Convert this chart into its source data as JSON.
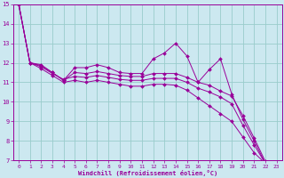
{
  "title": "",
  "xlabel": "Windchill (Refroidissement éolien,°C)",
  "ylabel": "",
  "background_color": "#cce8f0",
  "line_color": "#990099",
  "grid_color": "#99cccc",
  "xlim": [
    -0.5,
    23.5
  ],
  "ylim": [
    7,
    15
  ],
  "yticks": [
    7,
    8,
    9,
    10,
    11,
    12,
    13,
    14,
    15
  ],
  "xticks": [
    0,
    1,
    2,
    3,
    4,
    5,
    6,
    7,
    8,
    9,
    10,
    11,
    12,
    13,
    14,
    15,
    16,
    17,
    18,
    19,
    20,
    21,
    22,
    23
  ],
  "series": [
    [
      15.0,
      12.0,
      11.9,
      11.5,
      11.1,
      11.75,
      11.75,
      11.9,
      11.75,
      11.5,
      11.45,
      11.45,
      12.2,
      12.5,
      13.0,
      12.35,
      11.0,
      11.65,
      12.2,
      10.4,
      9.1,
      8.0,
      6.85,
      6.75
    ],
    [
      15.0,
      12.0,
      11.85,
      11.5,
      11.1,
      11.5,
      11.45,
      11.55,
      11.45,
      11.35,
      11.3,
      11.3,
      11.45,
      11.45,
      11.45,
      11.25,
      11.0,
      10.85,
      10.55,
      10.3,
      9.3,
      8.15,
      6.95,
      6.75
    ],
    [
      15.0,
      12.0,
      11.8,
      11.45,
      11.15,
      11.3,
      11.25,
      11.35,
      11.25,
      11.15,
      11.1,
      11.1,
      11.2,
      11.2,
      11.2,
      11.0,
      10.7,
      10.5,
      10.25,
      9.9,
      8.8,
      7.8,
      6.85,
      6.75
    ],
    [
      15.0,
      12.0,
      11.7,
      11.35,
      11.0,
      11.1,
      11.0,
      11.1,
      11.0,
      10.9,
      10.8,
      10.8,
      10.9,
      10.9,
      10.85,
      10.6,
      10.2,
      9.8,
      9.4,
      9.0,
      8.2,
      7.4,
      6.85,
      6.75
    ]
  ]
}
